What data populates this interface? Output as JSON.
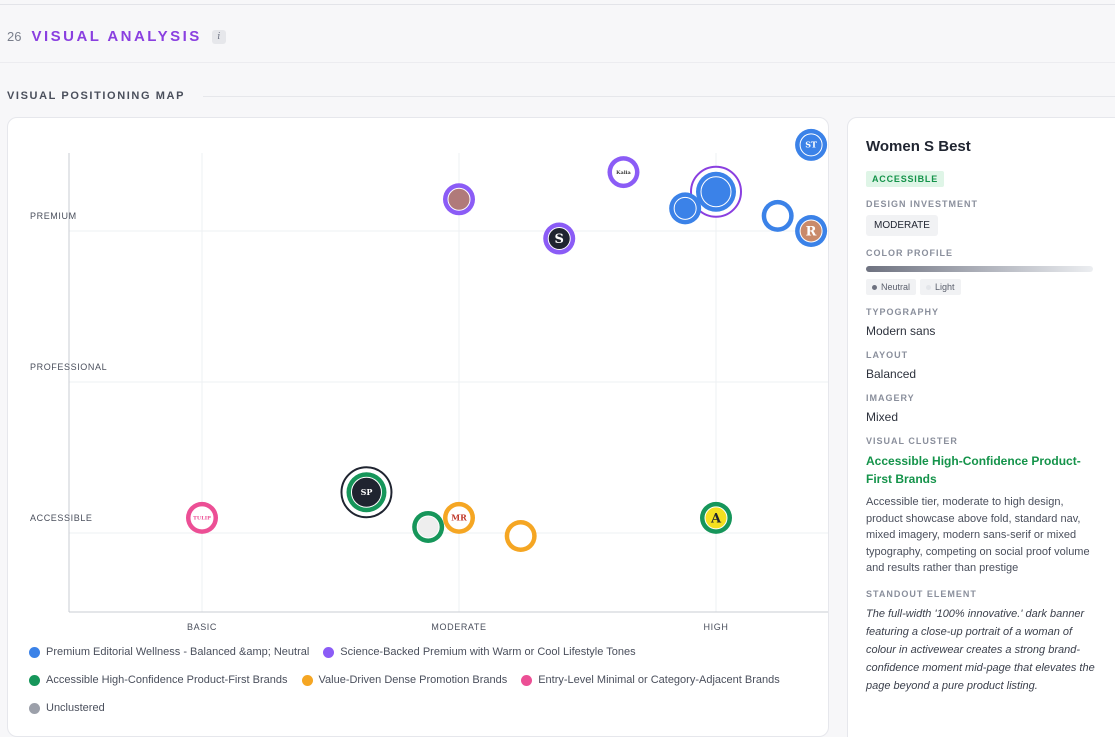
{
  "section": {
    "number": "26",
    "title": "VISUAL ANALYSIS",
    "info_icon": "i"
  },
  "map_title": "VISUAL POSITIONING MAP",
  "colors": {
    "purple": "#8a3fe0",
    "blue": "#3b82e8",
    "violet": "#8b5cf6",
    "green": "#16965a",
    "orange": "#f5a623",
    "pink": "#ec4f95",
    "gray": "#9ca0aa"
  },
  "chart_data": {
    "type": "scatter",
    "title": "",
    "x_categories": [
      "BASIC",
      "MODERATE",
      "HIGH"
    ],
    "y_categories": [
      "ACCESSIBLE",
      "PROFESSIONAL",
      "PREMIUM"
    ],
    "xlim": [
      0.5,
      3.5
    ],
    "ylim": [
      0.5,
      3.5
    ],
    "grid": true,
    "legend_position": "bottom",
    "points": [
      {
        "label": "ST",
        "x": 3.37,
        "y": 3.57,
        "cluster": 0,
        "fg": "#ffffff",
        "bg": "#3b82e8",
        "selected": false
      },
      {
        "label": "Kalia",
        "x": 2.64,
        "y": 3.39,
        "cluster": 1,
        "fg": "#333333",
        "bg": "#ffffff",
        "selected": false
      },
      {
        "label": "",
        "x": 3.0,
        "y": 3.26,
        "cluster": 0,
        "fg": "#ffffff",
        "bg": "#3b82e8",
        "selected": true
      },
      {
        "label": "",
        "x": 2.0,
        "y": 3.21,
        "cluster": 1,
        "fg": "#ffffff",
        "bg": "#b07a7a",
        "selected": false
      },
      {
        "label": "",
        "x": 2.88,
        "y": 3.15,
        "cluster": 0,
        "fg": "#ffffff",
        "bg": "#3b82e8",
        "selected": false
      },
      {
        "label": "",
        "x": 3.24,
        "y": 3.1,
        "cluster": 0,
        "fg": "#222222",
        "bg": "#ffffff",
        "selected": false
      },
      {
        "label": "R",
        "x": 3.37,
        "y": 3.0,
        "cluster": 0,
        "fg": "#ffffff",
        "bg": "#c98a6a",
        "selected": false
      },
      {
        "label": "S",
        "x": 2.39,
        "y": 2.95,
        "cluster": 1,
        "fg": "#ffffff",
        "bg": "#1f2430",
        "selected": false
      },
      {
        "label": "SP",
        "x": 1.64,
        "y": 1.27,
        "cluster": 2,
        "fg": "#ffffff",
        "bg": "#1f2430",
        "selected": true
      },
      {
        "label": "TULIP",
        "x": 1.0,
        "y": 1.1,
        "cluster": 4,
        "fg": "#ec4f95",
        "bg": "#ffffff",
        "selected": false
      },
      {
        "label": "MR",
        "x": 2.0,
        "y": 1.1,
        "cluster": 3,
        "fg": "#c0392b",
        "bg": "#ffffff",
        "selected": false
      },
      {
        "label": "",
        "x": 1.88,
        "y": 1.04,
        "cluster": 2,
        "fg": "#666666",
        "bg": "#eeeeee",
        "selected": false
      },
      {
        "label": "",
        "x": 2.24,
        "y": 0.98,
        "cluster": 3,
        "fg": "#ffffff",
        "bg": "#ffffff",
        "selected": false
      },
      {
        "label": "A",
        "x": 3.0,
        "y": 1.1,
        "cluster": 2,
        "fg": "#1f2430",
        "bg": "#f5e020",
        "selected": false
      }
    ],
    "series": [
      {
        "name": "Premium Editorial Wellness - Balanced &amp; Neutral",
        "color": "#3b82e8"
      },
      {
        "name": "Science-Backed Premium with Warm or Cool Lifestyle Tones",
        "color": "#8b5cf6"
      },
      {
        "name": "Accessible High-Confidence Product-First Brands",
        "color": "#16965a"
      },
      {
        "name": "Value-Driven Dense Promotion Brands",
        "color": "#f5a623"
      },
      {
        "name": "Entry-Level Minimal or Category-Adjacent Brands",
        "color": "#ec4f95"
      },
      {
        "name": "Unclustered",
        "color": "#9ca0aa"
      }
    ]
  },
  "detail": {
    "title": "Women S Best",
    "badge": "ACCESSIBLE",
    "design_investment_label": "DESIGN INVESTMENT",
    "design_investment": "MODERATE",
    "color_profile_label": "COLOR PROFILE",
    "color_tags": [
      "Neutral",
      "Light"
    ],
    "typography_label": "TYPOGRAPHY",
    "typography": "Modern sans",
    "layout_label": "LAYOUT",
    "layout": "Balanced",
    "imagery_label": "IMAGERY",
    "imagery": "Mixed",
    "cluster_label": "VISUAL CLUSTER",
    "cluster_name": "Accessible High-Confidence Product-First Brands",
    "cluster_desc": "Accessible tier, moderate to high design, product showcase above fold, standard nav, mixed imagery, modern sans-serif or mixed typography, competing on social proof volume and results rather than prestige",
    "standout_label": "STANDOUT ELEMENT",
    "standout": "The full-width '100% innovative.' dark banner featuring a close-up portrait of a woman of colour in activewear creates a strong brand-confidence moment mid-page that elevates the page beyond a pure product listing."
  }
}
